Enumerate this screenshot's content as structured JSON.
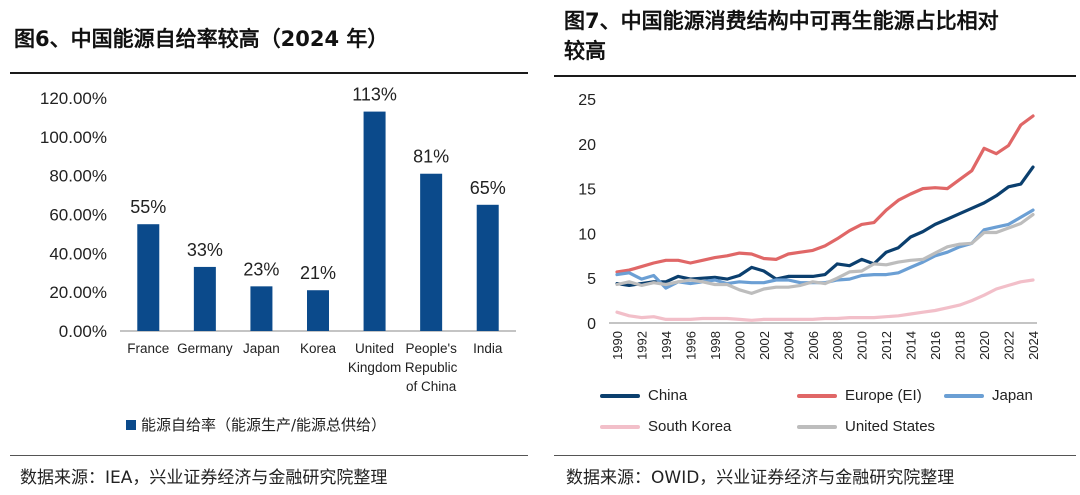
{
  "left": {
    "title": "图6、中国能源自给率较高（2024 年）",
    "source": "数据来源：IEA，兴业证券经济与金融研究院整理",
    "legend": "能源自给率（能源生产/能源总供给）",
    "colors": {
      "bar": "#0b4a8b"
    }
  },
  "right": {
    "title_line1": "图7、中国能源消费结构中可再生能源占比相对",
    "title_line2": "较高",
    "source": "数据来源：OWID，兴业证券经济与金融研究院整理"
  },
  "chart_data": [
    {
      "type": "bar",
      "categories": [
        "France",
        "Germany",
        "Japan",
        "Korea",
        "United Kingdom",
        "People's Republic of China",
        "India"
      ],
      "category_lines": [
        [
          "France"
        ],
        [
          "Germany"
        ],
        [
          "Japan"
        ],
        [
          "Korea"
        ],
        [
          "United",
          "Kingdom"
        ],
        [
          "People's",
          "Republic",
          "of China"
        ],
        [
          "India"
        ]
      ],
      "values": [
        55,
        33,
        23,
        21,
        113,
        81,
        65
      ],
      "data_labels": [
        "55%",
        "33%",
        "23%",
        "21%",
        "113%",
        "81%",
        "65%"
      ],
      "ylim": [
        0,
        120
      ],
      "yticks": [
        0,
        20,
        40,
        60,
        80,
        100,
        120
      ],
      "ytick_labels": [
        "0.00%",
        "20.00%",
        "40.00%",
        "60.00%",
        "80.00%",
        "100.00%",
        "120.00%"
      ],
      "series_name": "能源自给率（能源生产/能源总供给）",
      "legend_position": "bottom"
    },
    {
      "type": "line",
      "x": [
        1990,
        1991,
        1992,
        1993,
        1994,
        1995,
        1996,
        1997,
        1998,
        1999,
        2000,
        2001,
        2002,
        2003,
        2004,
        2005,
        2006,
        2007,
        2008,
        2009,
        2010,
        2011,
        2012,
        2013,
        2014,
        2015,
        2016,
        2017,
        2018,
        2019,
        2020,
        2021,
        2022,
        2023,
        2024
      ],
      "xticks": [
        1990,
        1992,
        1994,
        1996,
        1998,
        2000,
        2002,
        2004,
        2006,
        2008,
        2010,
        2012,
        2014,
        2016,
        2018,
        2020,
        2022,
        2024
      ],
      "xtick_labels": [
        "1990",
        "1992",
        "1994",
        "1996",
        "1998",
        "2000",
        "2002",
        "2004",
        "2006",
        "2008",
        "2010",
        "2012",
        "2014",
        "2016",
        "2018",
        "2020",
        "2022",
        "2024"
      ],
      "ylim": [
        0,
        25
      ],
      "yticks": [
        0,
        5,
        10,
        15,
        20,
        25
      ],
      "ytick_labels": [
        "0",
        "5",
        "10",
        "15",
        "20",
        "25"
      ],
      "legend_position": "bottom",
      "series": [
        {
          "name": "China",
          "color": "#0b3f6e",
          "values": [
            4.4,
            4.2,
            4.4,
            4.6,
            4.6,
            5.2,
            4.9,
            5.0,
            5.1,
            4.9,
            5.3,
            6.2,
            5.8,
            4.9,
            5.2,
            5.2,
            5.2,
            5.4,
            6.6,
            6.4,
            7.1,
            6.6,
            7.9,
            8.4,
            9.6,
            10.2,
            11.0,
            11.6,
            12.2,
            12.8,
            13.4,
            14.2,
            15.2,
            15.5,
            17.4
          ]
        },
        {
          "name": "Europe (EI)",
          "color": "#e06767",
          "values": [
            5.7,
            5.9,
            6.3,
            6.7,
            7.0,
            7.0,
            6.7,
            7.0,
            7.3,
            7.5,
            7.8,
            7.7,
            7.2,
            7.1,
            7.7,
            7.9,
            8.1,
            8.6,
            9.4,
            10.3,
            11.0,
            11.2,
            12.6,
            13.7,
            14.4,
            15.0,
            15.1,
            15.0,
            16.0,
            17.0,
            19.5,
            18.9,
            19.8,
            22.1,
            23.1
          ]
        },
        {
          "name": "Japan",
          "color": "#6b9fd4",
          "values": [
            5.4,
            5.6,
            4.9,
            5.3,
            3.9,
            4.6,
            4.4,
            4.6,
            4.8,
            4.4,
            4.6,
            4.5,
            4.5,
            4.8,
            4.8,
            4.5,
            4.5,
            4.5,
            4.8,
            4.9,
            5.3,
            5.4,
            5.4,
            5.6,
            6.2,
            6.8,
            7.5,
            7.9,
            8.5,
            8.9,
            10.4,
            10.7,
            11.0,
            11.8,
            12.6
          ]
        },
        {
          "name": "South Korea",
          "color": "#f2bfc9",
          "values": [
            1.2,
            0.8,
            0.6,
            0.7,
            0.4,
            0.4,
            0.4,
            0.5,
            0.5,
            0.5,
            0.4,
            0.3,
            0.4,
            0.4,
            0.4,
            0.4,
            0.4,
            0.5,
            0.5,
            0.6,
            0.6,
            0.6,
            0.7,
            0.8,
            1.0,
            1.2,
            1.4,
            1.7,
            2.0,
            2.5,
            3.1,
            3.8,
            4.2,
            4.6,
            4.8
          ]
        },
        {
          "name": "United States",
          "color": "#bdbdbd",
          "values": [
            4.3,
            4.6,
            4.2,
            4.5,
            4.3,
            4.6,
            4.8,
            4.6,
            4.3,
            4.3,
            3.7,
            3.3,
            3.8,
            4.0,
            4.0,
            4.2,
            4.6,
            4.4,
            5.0,
            5.7,
            5.8,
            6.6,
            6.5,
            6.8,
            7.0,
            7.1,
            7.8,
            8.5,
            8.8,
            8.9,
            10.1,
            10.1,
            10.6,
            11.1,
            12.1
          ]
        }
      ]
    }
  ]
}
